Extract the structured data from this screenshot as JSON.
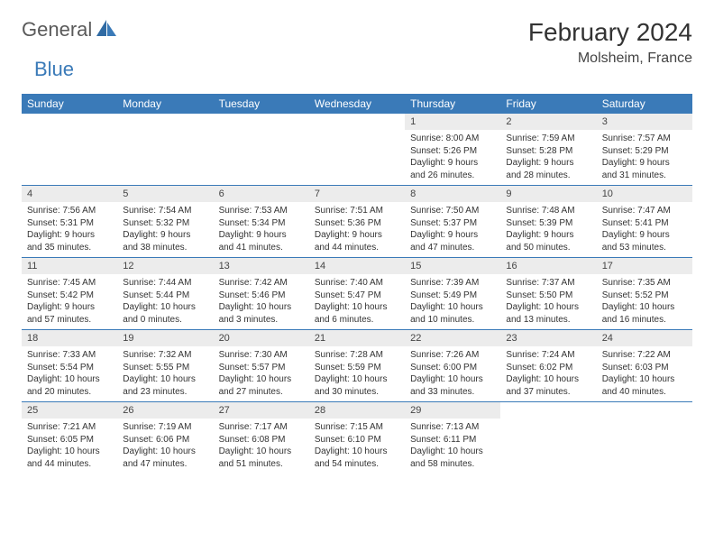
{
  "logo": {
    "part1": "General",
    "part2": "Blue"
  },
  "title": "February 2024",
  "location": "Molsheim, France",
  "colors": {
    "header_bg": "#3a7ab8",
    "header_fg": "#ffffff",
    "daynum_bg": "#ececec",
    "rule": "#3a7ab8",
    "logo_gray": "#5a5a5a",
    "logo_blue": "#3a7ab8"
  },
  "weekdays": [
    "Sunday",
    "Monday",
    "Tuesday",
    "Wednesday",
    "Thursday",
    "Friday",
    "Saturday"
  ],
  "weeks": [
    [
      null,
      null,
      null,
      null,
      {
        "n": "1",
        "sr": "Sunrise: 8:00 AM",
        "ss": "Sunset: 5:26 PM",
        "d1": "Daylight: 9 hours",
        "d2": "and 26 minutes."
      },
      {
        "n": "2",
        "sr": "Sunrise: 7:59 AM",
        "ss": "Sunset: 5:28 PM",
        "d1": "Daylight: 9 hours",
        "d2": "and 28 minutes."
      },
      {
        "n": "3",
        "sr": "Sunrise: 7:57 AM",
        "ss": "Sunset: 5:29 PM",
        "d1": "Daylight: 9 hours",
        "d2": "and 31 minutes."
      }
    ],
    [
      {
        "n": "4",
        "sr": "Sunrise: 7:56 AM",
        "ss": "Sunset: 5:31 PM",
        "d1": "Daylight: 9 hours",
        "d2": "and 35 minutes."
      },
      {
        "n": "5",
        "sr": "Sunrise: 7:54 AM",
        "ss": "Sunset: 5:32 PM",
        "d1": "Daylight: 9 hours",
        "d2": "and 38 minutes."
      },
      {
        "n": "6",
        "sr": "Sunrise: 7:53 AM",
        "ss": "Sunset: 5:34 PM",
        "d1": "Daylight: 9 hours",
        "d2": "and 41 minutes."
      },
      {
        "n": "7",
        "sr": "Sunrise: 7:51 AM",
        "ss": "Sunset: 5:36 PM",
        "d1": "Daylight: 9 hours",
        "d2": "and 44 minutes."
      },
      {
        "n": "8",
        "sr": "Sunrise: 7:50 AM",
        "ss": "Sunset: 5:37 PM",
        "d1": "Daylight: 9 hours",
        "d2": "and 47 minutes."
      },
      {
        "n": "9",
        "sr": "Sunrise: 7:48 AM",
        "ss": "Sunset: 5:39 PM",
        "d1": "Daylight: 9 hours",
        "d2": "and 50 minutes."
      },
      {
        "n": "10",
        "sr": "Sunrise: 7:47 AM",
        "ss": "Sunset: 5:41 PM",
        "d1": "Daylight: 9 hours",
        "d2": "and 53 minutes."
      }
    ],
    [
      {
        "n": "11",
        "sr": "Sunrise: 7:45 AM",
        "ss": "Sunset: 5:42 PM",
        "d1": "Daylight: 9 hours",
        "d2": "and 57 minutes."
      },
      {
        "n": "12",
        "sr": "Sunrise: 7:44 AM",
        "ss": "Sunset: 5:44 PM",
        "d1": "Daylight: 10 hours",
        "d2": "and 0 minutes."
      },
      {
        "n": "13",
        "sr": "Sunrise: 7:42 AM",
        "ss": "Sunset: 5:46 PM",
        "d1": "Daylight: 10 hours",
        "d2": "and 3 minutes."
      },
      {
        "n": "14",
        "sr": "Sunrise: 7:40 AM",
        "ss": "Sunset: 5:47 PM",
        "d1": "Daylight: 10 hours",
        "d2": "and 6 minutes."
      },
      {
        "n": "15",
        "sr": "Sunrise: 7:39 AM",
        "ss": "Sunset: 5:49 PM",
        "d1": "Daylight: 10 hours",
        "d2": "and 10 minutes."
      },
      {
        "n": "16",
        "sr": "Sunrise: 7:37 AM",
        "ss": "Sunset: 5:50 PM",
        "d1": "Daylight: 10 hours",
        "d2": "and 13 minutes."
      },
      {
        "n": "17",
        "sr": "Sunrise: 7:35 AM",
        "ss": "Sunset: 5:52 PM",
        "d1": "Daylight: 10 hours",
        "d2": "and 16 minutes."
      }
    ],
    [
      {
        "n": "18",
        "sr": "Sunrise: 7:33 AM",
        "ss": "Sunset: 5:54 PM",
        "d1": "Daylight: 10 hours",
        "d2": "and 20 minutes."
      },
      {
        "n": "19",
        "sr": "Sunrise: 7:32 AM",
        "ss": "Sunset: 5:55 PM",
        "d1": "Daylight: 10 hours",
        "d2": "and 23 minutes."
      },
      {
        "n": "20",
        "sr": "Sunrise: 7:30 AM",
        "ss": "Sunset: 5:57 PM",
        "d1": "Daylight: 10 hours",
        "d2": "and 27 minutes."
      },
      {
        "n": "21",
        "sr": "Sunrise: 7:28 AM",
        "ss": "Sunset: 5:59 PM",
        "d1": "Daylight: 10 hours",
        "d2": "and 30 minutes."
      },
      {
        "n": "22",
        "sr": "Sunrise: 7:26 AM",
        "ss": "Sunset: 6:00 PM",
        "d1": "Daylight: 10 hours",
        "d2": "and 33 minutes."
      },
      {
        "n": "23",
        "sr": "Sunrise: 7:24 AM",
        "ss": "Sunset: 6:02 PM",
        "d1": "Daylight: 10 hours",
        "d2": "and 37 minutes."
      },
      {
        "n": "24",
        "sr": "Sunrise: 7:22 AM",
        "ss": "Sunset: 6:03 PM",
        "d1": "Daylight: 10 hours",
        "d2": "and 40 minutes."
      }
    ],
    [
      {
        "n": "25",
        "sr": "Sunrise: 7:21 AM",
        "ss": "Sunset: 6:05 PM",
        "d1": "Daylight: 10 hours",
        "d2": "and 44 minutes."
      },
      {
        "n": "26",
        "sr": "Sunrise: 7:19 AM",
        "ss": "Sunset: 6:06 PM",
        "d1": "Daylight: 10 hours",
        "d2": "and 47 minutes."
      },
      {
        "n": "27",
        "sr": "Sunrise: 7:17 AM",
        "ss": "Sunset: 6:08 PM",
        "d1": "Daylight: 10 hours",
        "d2": "and 51 minutes."
      },
      {
        "n": "28",
        "sr": "Sunrise: 7:15 AM",
        "ss": "Sunset: 6:10 PM",
        "d1": "Daylight: 10 hours",
        "d2": "and 54 minutes."
      },
      {
        "n": "29",
        "sr": "Sunrise: 7:13 AM",
        "ss": "Sunset: 6:11 PM",
        "d1": "Daylight: 10 hours",
        "d2": "and 58 minutes."
      },
      null,
      null
    ]
  ]
}
